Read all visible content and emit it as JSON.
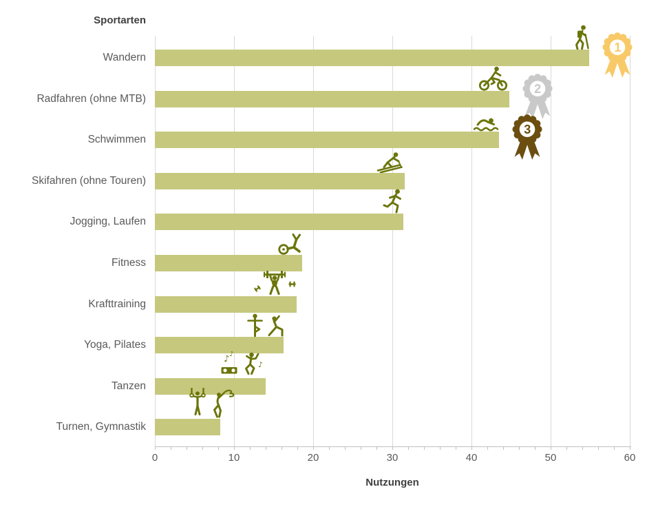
{
  "chart_data": {
    "type": "bar",
    "orientation": "horizontal",
    "title": "Sportarten",
    "xlabel": "Nutzungen",
    "xlim": [
      0,
      60
    ],
    "xticks": [
      0,
      10,
      20,
      30,
      40,
      50,
      60
    ],
    "minor_tick_step": 2,
    "grid": "vertical-major",
    "legend": "none",
    "bar_color": "#c6c87e",
    "icon_color": "#6b750b",
    "gridline_color": "#d9d9d9",
    "axis_color": "#bfbfbf",
    "rows": [
      {
        "label": "Wandern",
        "value": 54.9,
        "icon": "hiker",
        "medal_rank": 1
      },
      {
        "label": "Radfahren (ohne MTB)",
        "value": 44.8,
        "icon": "cyclist",
        "medal_rank": 2
      },
      {
        "label": "Schwimmen",
        "value": 43.5,
        "icon": "swimmer",
        "medal_rank": 3
      },
      {
        "label": "Skifahren (ohne Touren)",
        "value": 31.6,
        "icon": "skier",
        "medal_rank": null
      },
      {
        "label": "Jogging, Laufen",
        "value": 31.4,
        "icon": "runner",
        "medal_rank": null
      },
      {
        "label": "Fitness",
        "value": 18.6,
        "icon": "exercise-bike",
        "medal_rank": null
      },
      {
        "label": "Krafttraining",
        "value": 17.9,
        "icon": "weightlifter",
        "medal_rank": null
      },
      {
        "label": "Yoga, Pilates",
        "value": 16.3,
        "icon": "yoga",
        "medal_rank": null
      },
      {
        "label": "Tanzen",
        "value": 14.0,
        "icon": "dancer-music",
        "medal_rank": null
      },
      {
        "label": "Turnen, Gymnastik",
        "value": 8.3,
        "icon": "gymnastics",
        "medal_rank": null
      }
    ],
    "medals": [
      {
        "rank": "1",
        "color": "#f8c967",
        "name": "gold"
      },
      {
        "rank": "2",
        "color": "#c9c9c9",
        "name": "silver"
      },
      {
        "rank": "3",
        "color": "#6b4e10",
        "name": "bronze"
      }
    ]
  }
}
